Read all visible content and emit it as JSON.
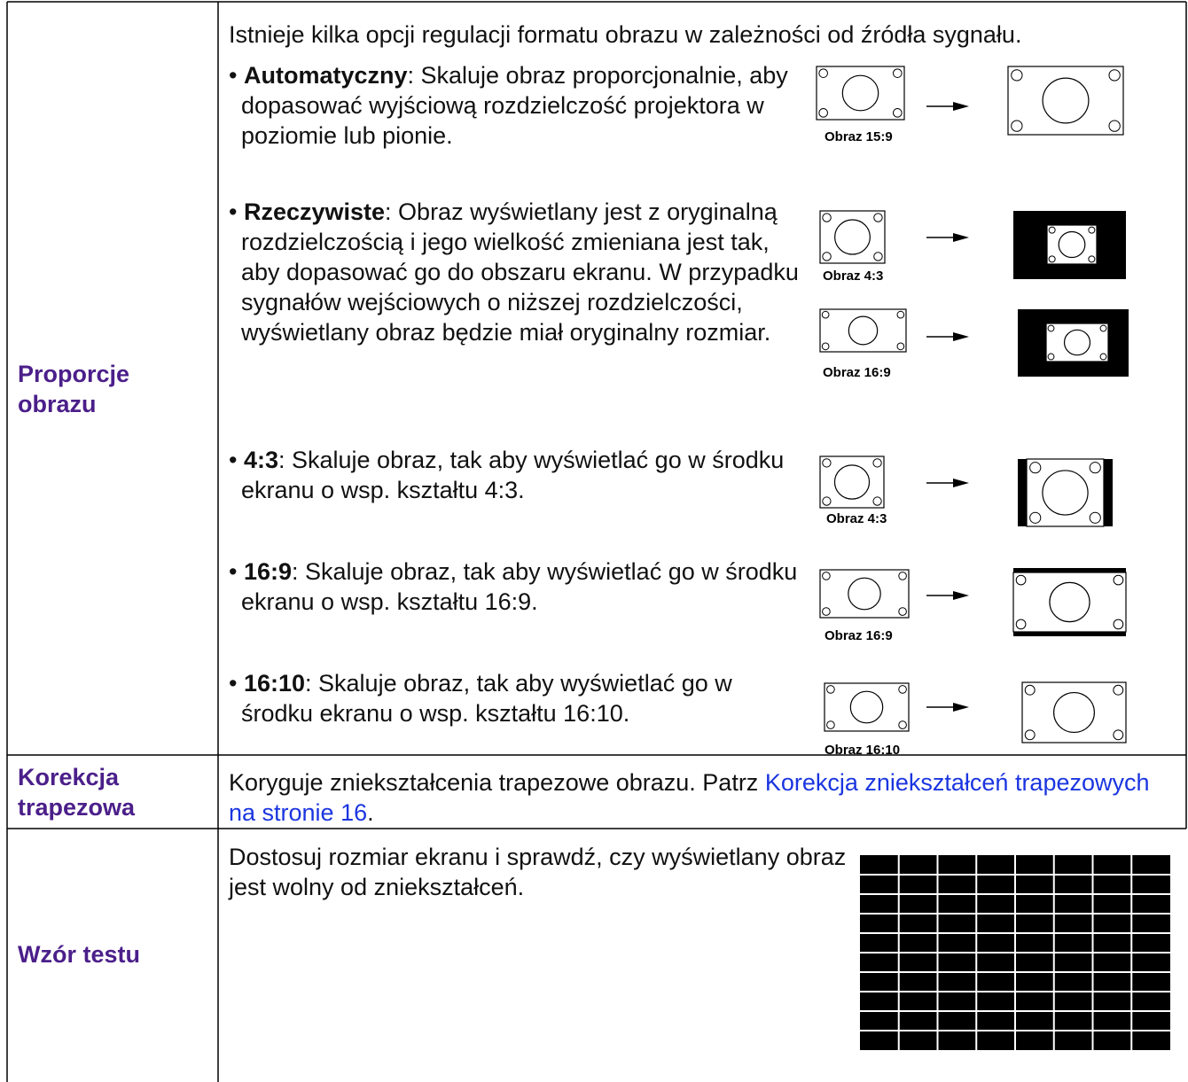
{
  "rows": [
    {
      "label": "Proporcje obrazu",
      "intro": "Istnieje kilka opcji regulacji formatu obrazu w zależności od źródła sygnału.",
      "bullet": "•",
      "items": [
        {
          "term": "Automatyczny",
          "text": ": Skaluje obraz proporcjonalnie, aby dopasować wyjściową rozdzielczość projektora w poziomie lub pionie.",
          "captions": [
            "Obraz 15:9"
          ]
        },
        {
          "term": "Rzeczywiste",
          "text": ": Obraz wyświetlany jest z oryginalną rozdzielczością i jego wielkość zmieniana jest tak, aby dopasować go do obszaru ekranu. W przypadku sygnałów wejściowych o niższej rozdzielczości, wyświetlany obraz będzie miał oryginalny rozmiar.",
          "captions": [
            "Obraz 4:3",
            "Obraz 16:9"
          ]
        },
        {
          "term": "4:3",
          "text": ": Skaluje obraz, tak aby wyświetlać go w środku ekranu o wsp. kształtu 4:3.",
          "captions": [
            "Obraz 4:3"
          ]
        },
        {
          "term": "16:9",
          "text": ": Skaluje obraz, tak aby wyświetlać go w środku ekranu o wsp. kształtu 16:9.",
          "captions": [
            "Obraz 16:9"
          ]
        },
        {
          "term": "16:10",
          "text": ": Skaluje obraz, tak aby wyświetlać go w środku ekranu o wsp. kształtu 16:10.",
          "captions": [
            "Obraz 16:10"
          ]
        }
      ]
    },
    {
      "label": "Korekcja trapezowa",
      "text": "Koryguje zniekształcenia trapezowe obrazu. Patrz ",
      "link": "Korekcja zniekształceń trapezowych na stronie 16",
      "end": "."
    },
    {
      "label": "Wzór testu",
      "text": "Dostosuj rozmiar ekranu i sprawdź, czy wyświetlany obraz jest wolny od zniekształceń."
    }
  ]
}
